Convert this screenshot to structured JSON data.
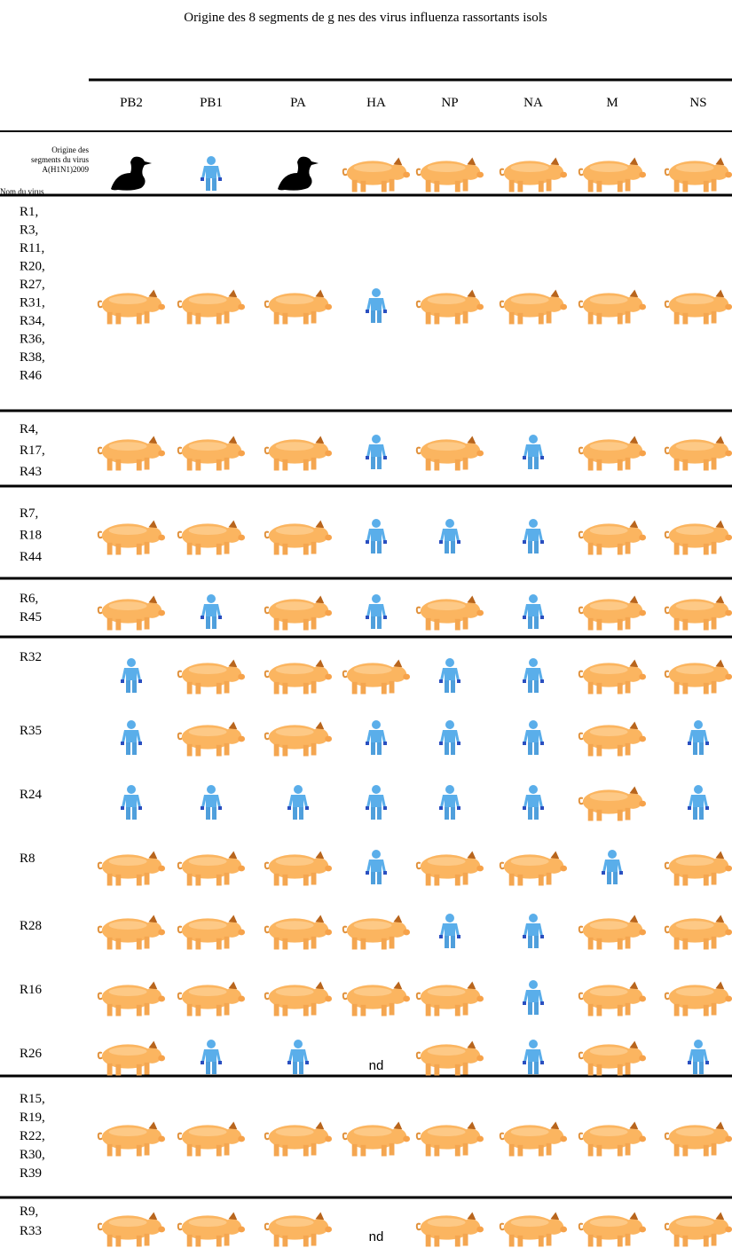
{
  "title": "Origine des 8 segments de g nes des virus influenza rassortants isols",
  "columns": [
    "PB2",
    "PB1",
    "PA",
    "HA",
    "NP",
    "NA",
    "M",
    "NS"
  ],
  "header": {
    "origin": [
      "Origine des",
      "segments du virus",
      "A(H1N1)2009"
    ],
    "name": "Nom du virus"
  },
  "rows": [
    {
      "label": [
        "R1,",
        "R3,",
        "R11,",
        "R20,",
        "R27,",
        "R31,",
        "R34,",
        "R36,",
        "R38,",
        "R46"
      ]
    },
    {
      "label": [
        "R4,",
        "R17,",
        "R43"
      ]
    },
    {
      "label": [
        "R7,",
        "R18",
        "R44"
      ]
    },
    {
      "label": [
        "R6,",
        "R45"
      ]
    },
    {
      "label": [
        "R32"
      ]
    },
    {
      "label": [
        "R35"
      ]
    },
    {
      "label": [
        "R24"
      ]
    },
    {
      "label": [
        "R8"
      ]
    },
    {
      "label": [
        "R28"
      ]
    },
    {
      "label": [
        "R16"
      ]
    },
    {
      "label": [
        "R26"
      ],
      "cells": {
        "HA": "nd"
      }
    },
    {
      "label": [
        "R15,",
        "R19,",
        "R22,",
        "R30,",
        "R39"
      ]
    },
    {
      "label": [
        "R9,",
        "R33"
      ],
      "cells": {
        "HA": "nd"
      }
    }
  ]
}
